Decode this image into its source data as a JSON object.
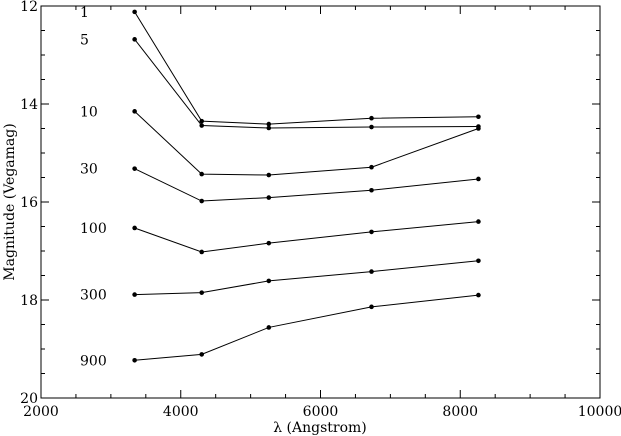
{
  "chart_data": {
    "type": "line",
    "title": "",
    "xlabel": "λ (Angstrom)",
    "ylabel": "Magnitude (Vegamag)",
    "xlim": [
      2000,
      10000
    ],
    "ylim": [
      20,
      12
    ],
    "y_inverted": true,
    "grid": false,
    "x_ticks": [
      2000,
      4000,
      6000,
      8000,
      10000
    ],
    "y_ticks": [
      12,
      14,
      16,
      18,
      20
    ],
    "x": [
      3340,
      4300,
      5260,
      6730,
      8260
    ],
    "series": [
      {
        "name": "1",
        "values": [
          12.12,
          14.35,
          14.41,
          14.29,
          14.26
        ]
      },
      {
        "name": "5",
        "values": [
          12.68,
          14.44,
          14.49,
          14.47,
          14.46
        ]
      },
      {
        "name": "10",
        "values": [
          14.15,
          15.43,
          15.45,
          15.29,
          14.5
        ]
      },
      {
        "name": "30",
        "values": [
          15.32,
          15.98,
          15.91,
          15.76,
          15.53
        ]
      },
      {
        "name": "100",
        "values": [
          16.53,
          17.02,
          16.84,
          16.61,
          16.4
        ]
      },
      {
        "name": "300",
        "values": [
          17.89,
          17.85,
          17.61,
          17.42,
          17.2
        ]
      },
      {
        "name": "900",
        "values": [
          19.23,
          19.11,
          18.56,
          18.14,
          17.9
        ]
      }
    ]
  }
}
